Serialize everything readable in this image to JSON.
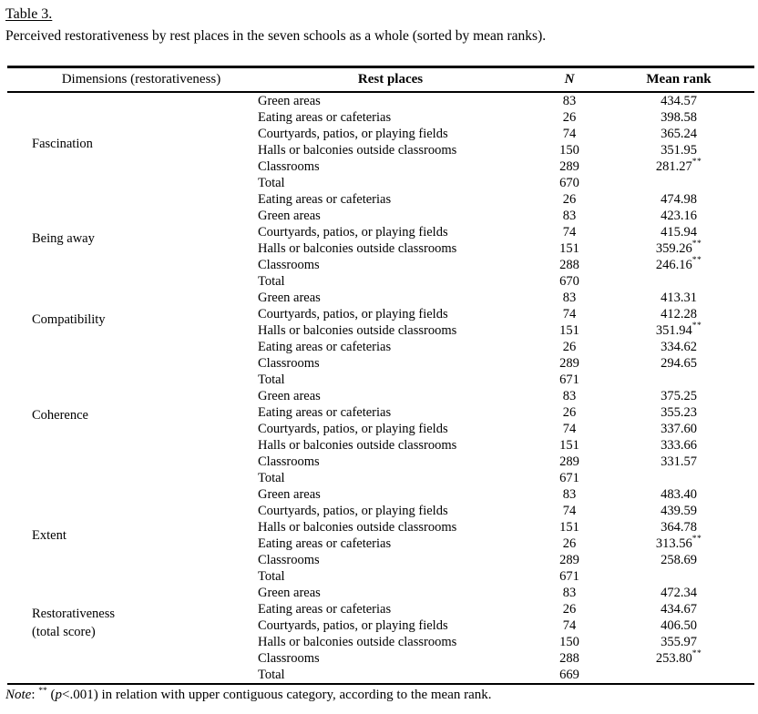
{
  "doc": {
    "title": "Table 3.",
    "caption": "Perceived restorativeness by rest places in the seven schools as a whole (sorted by mean ranks)."
  },
  "table": {
    "headers": {
      "dimensions": "Dimensions (restorativeness)",
      "rest_places": "Rest places",
      "n": "N",
      "mean_rank": "Mean rank"
    },
    "sig_marker": "**",
    "sections": [
      {
        "dimension": "Fascination",
        "rows": [
          {
            "place": "Green areas",
            "n": "83",
            "rank": "434.57",
            "sig": false
          },
          {
            "place": "Eating areas or cafeterias",
            "n": "26",
            "rank": "398.58",
            "sig": false
          },
          {
            "place": "Courtyards, patios, or playing fields",
            "n": "74",
            "rank": "365.24",
            "sig": false
          },
          {
            "place": "Halls or balconies outside classrooms",
            "n": "150",
            "rank": "351.95",
            "sig": false
          },
          {
            "place": "Classrooms",
            "n": "289",
            "rank": "281.27",
            "sig": true
          },
          {
            "place": "Total",
            "n": "670",
            "rank": "",
            "sig": false
          }
        ]
      },
      {
        "dimension": "Being away",
        "rows": [
          {
            "place": "Eating areas or cafeterias",
            "n": "26",
            "rank": "474.98",
            "sig": false
          },
          {
            "place": "Green areas",
            "n": "83",
            "rank": "423.16",
            "sig": false
          },
          {
            "place": "Courtyards, patios, or playing fields",
            "n": "74",
            "rank": "415.94",
            "sig": false
          },
          {
            "place": "Halls or balconies outside classrooms",
            "n": "151",
            "rank": "359.26",
            "sig": true
          },
          {
            "place": "Classrooms",
            "n": "288",
            "rank": "246.16",
            "sig": true
          },
          {
            "place": "Total",
            "n": "670",
            "rank": "",
            "sig": false
          }
        ]
      },
      {
        "dimension": "Compatibility",
        "rows": [
          {
            "place": "Green areas",
            "n": "83",
            "rank": "413.31",
            "sig": false
          },
          {
            "place": "Courtyards, patios, or playing fields",
            "n": "74",
            "rank": "412.28",
            "sig": false
          },
          {
            "place": "Halls or balconies outside classrooms",
            "n": "151",
            "rank": "351.94",
            "sig": true
          },
          {
            "place": "Eating areas or cafeterias",
            "n": "26",
            "rank": "334.62",
            "sig": false
          },
          {
            "place": "Classrooms",
            "n": "289",
            "rank": "294.65",
            "sig": false
          },
          {
            "place": "Total",
            "n": "671",
            "rank": "",
            "sig": false
          }
        ]
      },
      {
        "dimension": "Coherence",
        "rows": [
          {
            "place": "Green areas",
            "n": "83",
            "rank": "375.25",
            "sig": false
          },
          {
            "place": "Eating areas or cafeterias",
            "n": "26",
            "rank": "355.23",
            "sig": false
          },
          {
            "place": "Courtyards, patios, or playing fields",
            "n": "74",
            "rank": "337.60",
            "sig": false
          },
          {
            "place": "Halls or balconies outside classrooms",
            "n": "151",
            "rank": "333.66",
            "sig": false
          },
          {
            "place": "Classrooms",
            "n": "289",
            "rank": "331.57",
            "sig": false
          },
          {
            "place": "Total",
            "n": "671",
            "rank": "",
            "sig": false
          }
        ]
      },
      {
        "dimension": "Extent",
        "rows": [
          {
            "place": "Green areas",
            "n": "83",
            "rank": "483.40",
            "sig": false
          },
          {
            "place": "Courtyards, patios, or playing fields",
            "n": "74",
            "rank": "439.59",
            "sig": false
          },
          {
            "place": "Halls or balconies outside classrooms",
            "n": "151",
            "rank": "364.78",
            "sig": false
          },
          {
            "place": "Eating areas or cafeterias",
            "n": "26",
            "rank": "313.56",
            "sig": true
          },
          {
            "place": "Classrooms",
            "n": "289",
            "rank": "258.69",
            "sig": false
          },
          {
            "place": "Total",
            "n": "671",
            "rank": "",
            "sig": false
          }
        ]
      },
      {
        "dimension": "Restorativeness\n(total score)",
        "rows": [
          {
            "place": "Green areas",
            "n": "83",
            "rank": "472.34",
            "sig": false
          },
          {
            "place": "Eating areas or cafeterias",
            "n": "26",
            "rank": "434.67",
            "sig": false
          },
          {
            "place": "Courtyards, patios, or playing fields",
            "n": "74",
            "rank": "406.50",
            "sig": false
          },
          {
            "place": "Halls or balconies outside classrooms",
            "n": "150",
            "rank": "355.97",
            "sig": false
          },
          {
            "place": "Classrooms",
            "n": "288",
            "rank": "253.80",
            "sig": true
          },
          {
            "place": "Total",
            "n": "669",
            "rank": "",
            "sig": false
          }
        ]
      }
    ]
  },
  "note": {
    "label": "Note",
    "colon": ": ",
    "marker": "**",
    "open": " (",
    "p": "p",
    "rest": "<.001) in relation with upper contiguous category, according to the mean rank."
  }
}
